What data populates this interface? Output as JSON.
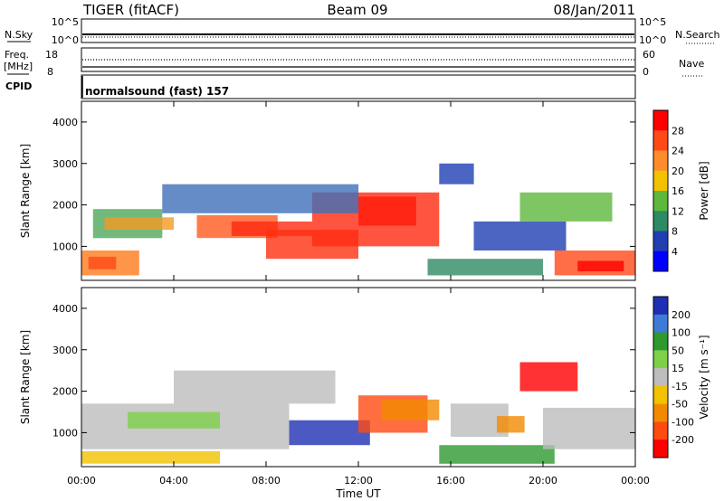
{
  "header": {
    "title": "TIGER (fitACF)",
    "beam": "Beam 09",
    "date": "08/Jan/2011"
  },
  "status_panels": {
    "nsky_label": "N.Sky",
    "nsky_ticks": [
      "10^5",
      "10^0"
    ],
    "nsearch_label": "N.Search",
    "nsearch_ticks": [
      "10^5",
      "10^0"
    ],
    "freq_label": "Freq.",
    "freq_unit": "[MHz]",
    "freq_ticks": [
      "18",
      "8"
    ],
    "nave_label": "Nave",
    "nave_ticks": [
      "60",
      "0"
    ],
    "cpid_label": "CPID",
    "cpid_value": "normalsound (fast) 157"
  },
  "chart_data": [
    {
      "type": "heatmap",
      "name_ref": "power",
      "ylabel": "Slant Range [km]",
      "ylim": [
        180,
        4500
      ],
      "yticks": [
        "1000",
        "2000",
        "3000",
        "4000"
      ],
      "colorbar_label": "Power [dB]",
      "colorbar_ticks": [
        "28",
        "24",
        "20",
        "16",
        "12",
        "8",
        "4"
      ],
      "colorbar_colors": [
        "#ff0000",
        "#ff4a18",
        "#ff8c2a",
        "#f2c200",
        "#5db83c",
        "#2e8a63",
        "#1f3fb3",
        "#0000ff"
      ],
      "regions": [
        {
          "x": [
            0.5,
            3.5
          ],
          "y": [
            1200,
            1900
          ],
          "color": "#4fa85a"
        },
        {
          "x": [
            1.0,
            4.0
          ],
          "y": [
            1400,
            1700
          ],
          "color": "#f29a24"
        },
        {
          "x": [
            0.0,
            2.5
          ],
          "y": [
            300,
            900
          ],
          "color": "#ff7a1c"
        },
        {
          "x": [
            0.3,
            1.5
          ],
          "y": [
            450,
            750
          ],
          "color": "#ff4a18"
        },
        {
          "x": [
            5.0,
            8.5
          ],
          "y": [
            1200,
            1750
          ],
          "color": "#ff5a1e"
        },
        {
          "x": [
            6.5,
            10.0
          ],
          "y": [
            1250,
            1600
          ],
          "color": "#ff2a10"
        },
        {
          "x": [
            8.0,
            12.0
          ],
          "y": [
            700,
            1400
          ],
          "color": "#ff3010"
        },
        {
          "x": [
            10.0,
            15.5
          ],
          "y": [
            1000,
            2300
          ],
          "color": "#ff2a10"
        },
        {
          "x": [
            12.0,
            14.5
          ],
          "y": [
            1500,
            2200
          ],
          "color": "#ff1a0a"
        },
        {
          "x": [
            3.5,
            12.0
          ],
          "y": [
            1800,
            2500
          ],
          "color": "#3e6fb8"
        },
        {
          "x": [
            15.5,
            17.0
          ],
          "y": [
            2500,
            3000
          ],
          "color": "#1f3fb3"
        },
        {
          "x": [
            15.0,
            20.0
          ],
          "y": [
            300,
            700
          ],
          "color": "#2e8a63"
        },
        {
          "x": [
            17.0,
            21.0
          ],
          "y": [
            900,
            1600
          ],
          "color": "#1f3fb3"
        },
        {
          "x": [
            20.5,
            24.0
          ],
          "y": [
            300,
            900
          ],
          "color": "#ff4a18"
        },
        {
          "x": [
            21.5,
            23.5
          ],
          "y": [
            400,
            650
          ],
          "color": "#ff0000"
        },
        {
          "x": [
            19.0,
            23.0
          ],
          "y": [
            1600,
            2300
          ],
          "color": "#5db83c"
        }
      ]
    },
    {
      "type": "heatmap",
      "name_ref": "velocity",
      "ylabel": "Slant Range [km]",
      "ylim": [
        180,
        4500
      ],
      "yticks": [
        "1000",
        "2000",
        "3000",
        "4000"
      ],
      "xlabel": "Time UT",
      "xticks": [
        "00:00",
        "04:00",
        "08:00",
        "12:00",
        "16:00",
        "20:00",
        "00:00"
      ],
      "xlim": [
        0,
        24
      ],
      "colorbar_label": "Velocity [m s⁻¹]",
      "colorbar_ticks": [
        "200",
        "100",
        "50",
        "15",
        "-15",
        "-50",
        "-100",
        "-200"
      ],
      "colorbar_colors": [
        "#1f2fb3",
        "#3f7ad6",
        "#2e9a2e",
        "#7ecf4a",
        "#bdbdbd",
        "#f2c200",
        "#f28a00",
        "#ff4a10",
        "#ff0000"
      ],
      "regions": [
        {
          "x": [
            0.0,
            9.0
          ],
          "y": [
            600,
            1700
          ],
          "color": "#bdbdbd"
        },
        {
          "x": [
            0.0,
            6.0
          ],
          "y": [
            250,
            550
          ],
          "color": "#f2c200"
        },
        {
          "x": [
            2.0,
            6.0
          ],
          "y": [
            1100,
            1500
          ],
          "color": "#7ecf4a"
        },
        {
          "x": [
            9.0,
            12.5
          ],
          "y": [
            700,
            1300
          ],
          "color": "#1f2fb3"
        },
        {
          "x": [
            12.0,
            15.0
          ],
          "y": [
            1000,
            1900
          ],
          "color": "#ff4a10"
        },
        {
          "x": [
            13.0,
            15.5
          ],
          "y": [
            1300,
            1800
          ],
          "color": "#f28a00"
        },
        {
          "x": [
            15.5,
            20.5
          ],
          "y": [
            250,
            700
          ],
          "color": "#2e9a2e"
        },
        {
          "x": [
            16.0,
            18.5
          ],
          "y": [
            900,
            1700
          ],
          "color": "#bdbdbd"
        },
        {
          "x": [
            18.0,
            19.2
          ],
          "y": [
            1000,
            1400
          ],
          "color": "#f28a00"
        },
        {
          "x": [
            19.0,
            21.5
          ],
          "y": [
            2000,
            2700
          ],
          "color": "#ff0000"
        },
        {
          "x": [
            20.0,
            24.0
          ],
          "y": [
            600,
            1600
          ],
          "color": "#bdbdbd"
        },
        {
          "x": [
            4.0,
            11.0
          ],
          "y": [
            1700,
            2500
          ],
          "color": "#bdbdbd"
        }
      ]
    }
  ]
}
